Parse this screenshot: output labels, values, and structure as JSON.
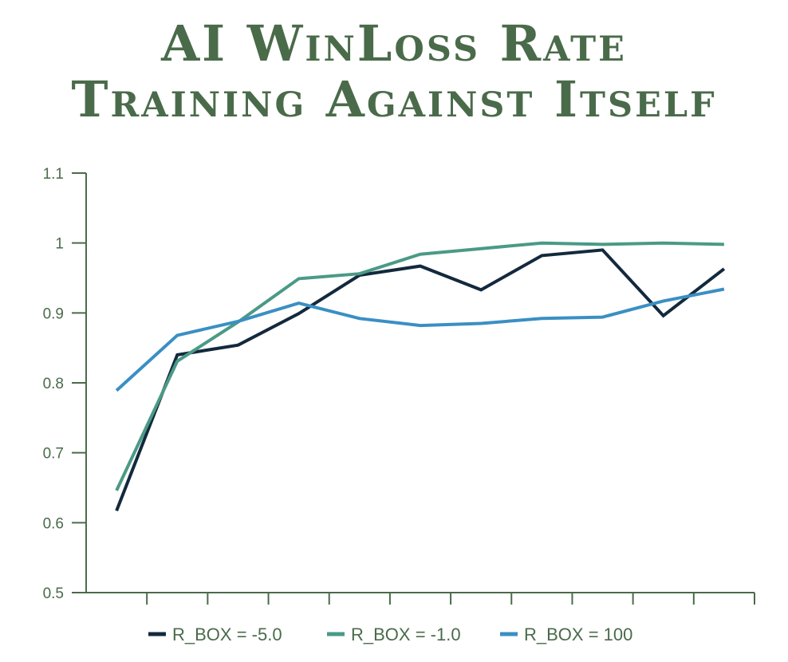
{
  "title_line_1": "AI WinLoss Rate",
  "title_line_2": "Training Against Itself",
  "chart_data": {
    "type": "line",
    "title": "AI WinLoss Rate Training Against Itself",
    "xlabel": "",
    "ylabel": "",
    "ylim": [
      0.5,
      1.1
    ],
    "yticks": [
      "0.5",
      "0.6",
      "0.7",
      "0.8",
      "0.9",
      "1",
      "1.1"
    ],
    "x_count": 11,
    "grid": false,
    "legend_position": "bottom",
    "series": [
      {
        "name": "R_BOX = -5.0",
        "color": "#13293d",
        "values": [
          0.617,
          0.84,
          0.854,
          0.899,
          0.954,
          0.967,
          0.933,
          0.982,
          0.99,
          0.896,
          0.963
        ]
      },
      {
        "name": "R_BOX = -1.0",
        "color": "#4a9a86",
        "values": [
          0.646,
          0.831,
          0.887,
          0.949,
          0.956,
          0.984,
          0.992,
          1.0,
          0.998,
          1.0,
          0.998
        ]
      },
      {
        "name": "R_BOX = 100",
        "color": "#3a8fc4",
        "values": [
          0.789,
          0.868,
          0.888,
          0.914,
          0.892,
          0.882,
          0.885,
          0.892,
          0.894,
          0.917,
          0.934
        ]
      }
    ]
  },
  "colors": {
    "title": "#4a6b4a",
    "axis": "#4a6b4a"
  }
}
